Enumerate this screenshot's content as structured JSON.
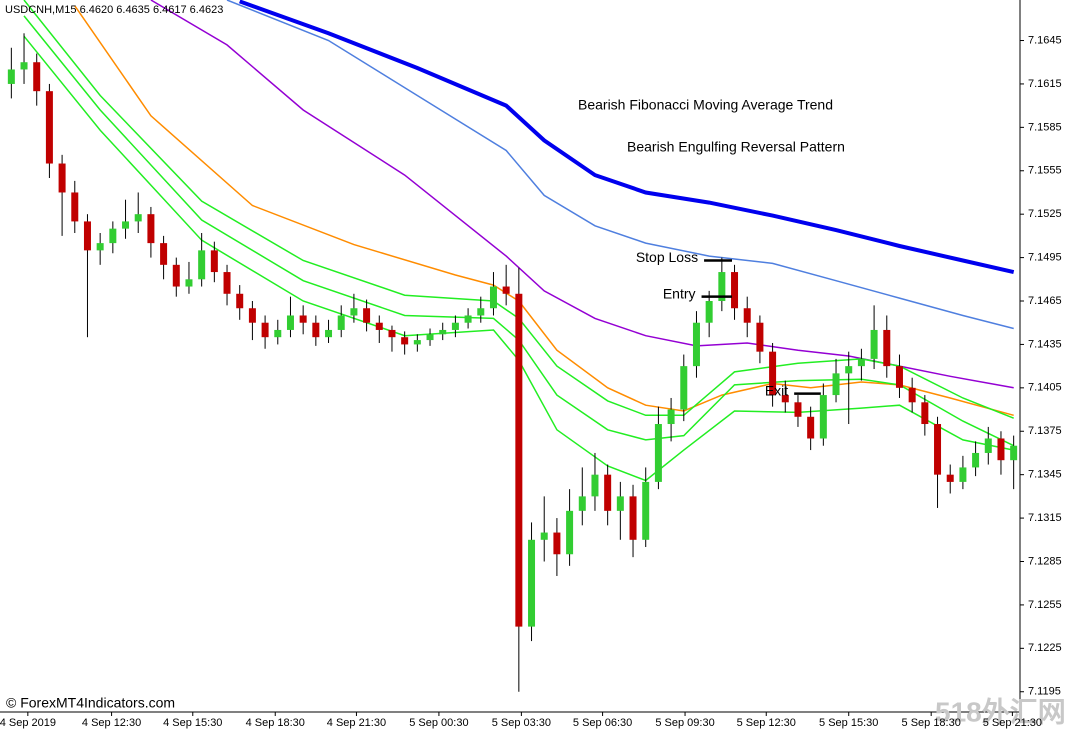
{
  "chart_data": {
    "type": "candlestick",
    "symbol_info": "USDCNH,M15  6.4620 6.4635 6.4617 6.4623",
    "annotations": [
      "Bearish Fibonacci Moving Average Trend",
      "Bearish Engulfing Reversal Pattern"
    ],
    "watermarks": [
      "© ForexMT4Indicators.com",
      "518外汇网"
    ],
    "up_color": "#32cd32",
    "down_color": "#c00000",
    "wick_color": "#000000",
    "ylim": [
      7.1181,
      7.1673
    ],
    "yticks": [
      7.1645,
      7.1615,
      7.1585,
      7.1555,
      7.1525,
      7.1495,
      7.1465,
      7.1435,
      7.1405,
      7.1375,
      7.1345,
      7.1315,
      7.1285,
      7.1255,
      7.1225,
      7.1195
    ],
    "xlim": [
      0,
      80
    ],
    "xticks": [
      {
        "value": 1.3,
        "label": "4 Sep 2019"
      },
      {
        "value": 7.9,
        "label": "4 Sep 12:30"
      },
      {
        "value": 14.3,
        "label": "4 Sep 15:30"
      },
      {
        "value": 20.8,
        "label": "4 Sep 18:30"
      },
      {
        "value": 27.2,
        "label": "4 Sep 21:30"
      },
      {
        "value": 33.7,
        "label": "5 Sep 00:30"
      },
      {
        "value": 40.2,
        "label": "5 Sep 03:30"
      },
      {
        "value": 46.6,
        "label": "5 Sep 06:30"
      },
      {
        "value": 53.1,
        "label": "5 Sep 09:30"
      },
      {
        "value": 59.5,
        "label": "5 Sep 12:30"
      },
      {
        "value": 66.0,
        "label": "5 Sep 15:30"
      },
      {
        "value": 72.5,
        "label": "5 Sep 18:30"
      },
      {
        "value": 78.9,
        "label": "5 Sep 21:30"
      }
    ],
    "candles": [
      [
        7.1615,
        7.164,
        7.1605,
        7.1625
      ],
      [
        7.1625,
        7.165,
        7.1615,
        7.163
      ],
      [
        7.163,
        7.1636,
        7.16,
        7.161
      ],
      [
        7.161,
        7.1615,
        7.155,
        7.156
      ],
      [
        7.156,
        7.1566,
        7.151,
        7.154
      ],
      [
        7.154,
        7.1548,
        7.1512,
        7.152
      ],
      [
        7.152,
        7.1525,
        7.144,
        7.15
      ],
      [
        7.15,
        7.1512,
        7.149,
        7.1505
      ],
      [
        7.1505,
        7.152,
        7.1498,
        7.1515
      ],
      [
        7.1515,
        7.1535,
        7.1508,
        7.152
      ],
      [
        7.152,
        7.154,
        7.1512,
        7.1525
      ],
      [
        7.1525,
        7.153,
        7.1495,
        7.1505
      ],
      [
        7.1505,
        7.151,
        7.148,
        7.149
      ],
      [
        7.149,
        7.1495,
        7.1468,
        7.1475
      ],
      [
        7.1475,
        7.1492,
        7.147,
        7.148
      ],
      [
        7.148,
        7.1512,
        7.1475,
        7.15
      ],
      [
        7.15,
        7.1506,
        7.1478,
        7.1485
      ],
      [
        7.1485,
        7.149,
        7.1462,
        7.147
      ],
      [
        7.147,
        7.1476,
        7.1452,
        7.146
      ],
      [
        7.146,
        7.1465,
        7.1438,
        7.145
      ],
      [
        7.145,
        7.1455,
        7.1432,
        7.144
      ],
      [
        7.144,
        7.1452,
        7.1435,
        7.1445
      ],
      [
        7.1445,
        7.1468,
        7.144,
        7.1455
      ],
      [
        7.1455,
        7.1462,
        7.1442,
        7.145
      ],
      [
        7.145,
        7.1455,
        7.1434,
        7.144
      ],
      [
        7.144,
        7.1452,
        7.1436,
        7.1445
      ],
      [
        7.1445,
        7.1462,
        7.144,
        7.1455
      ],
      [
        7.1455,
        7.147,
        7.145,
        7.146
      ],
      [
        7.146,
        7.1466,
        7.1444,
        7.145
      ],
      [
        7.145,
        7.1455,
        7.1436,
        7.1445
      ],
      [
        7.1445,
        7.1448,
        7.143,
        7.144
      ],
      [
        7.144,
        7.1444,
        7.1428,
        7.1435
      ],
      [
        7.1435,
        7.1442,
        7.143,
        7.1438
      ],
      [
        7.1438,
        7.1446,
        7.1434,
        7.1442
      ],
      [
        7.1442,
        7.145,
        7.1438,
        7.1445
      ],
      [
        7.1445,
        7.1455,
        7.144,
        7.145
      ],
      [
        7.145,
        7.146,
        7.1446,
        7.1455
      ],
      [
        7.1455,
        7.1468,
        7.145,
        7.146
      ],
      [
        7.146,
        7.1485,
        7.1455,
        7.1475
      ],
      [
        7.1475,
        7.149,
        7.1462,
        7.147
      ],
      [
        7.147,
        7.1488,
        7.1195,
        7.124
      ],
      [
        7.124,
        7.1312,
        7.123,
        7.13
      ],
      [
        7.13,
        7.133,
        7.1285,
        7.1305
      ],
      [
        7.1305,
        7.1315,
        7.1275,
        7.129
      ],
      [
        7.129,
        7.1335,
        7.1282,
        7.132
      ],
      [
        7.132,
        7.135,
        7.131,
        7.133
      ],
      [
        7.133,
        7.136,
        7.132,
        7.1345
      ],
      [
        7.1345,
        7.1352,
        7.131,
        7.132
      ],
      [
        7.132,
        7.134,
        7.13,
        7.133
      ],
      [
        7.133,
        7.1338,
        7.1288,
        7.13
      ],
      [
        7.13,
        7.135,
        7.1295,
        7.134
      ],
      [
        7.134,
        7.1392,
        7.1335,
        7.138
      ],
      [
        7.138,
        7.1398,
        7.1368,
        7.139
      ],
      [
        7.139,
        7.1428,
        7.1382,
        7.142
      ],
      [
        7.142,
        7.1458,
        7.1412,
        7.145
      ],
      [
        7.145,
        7.1472,
        7.144,
        7.1465
      ],
      [
        7.1465,
        7.1495,
        7.1458,
        7.1485
      ],
      [
        7.1485,
        7.149,
        7.1452,
        7.146
      ],
      [
        7.146,
        7.1468,
        7.144,
        7.145
      ],
      [
        7.145,
        7.1455,
        7.1422,
        7.143
      ],
      [
        7.143,
        7.1436,
        7.1392,
        7.14
      ],
      [
        7.14,
        7.141,
        7.1388,
        7.1395
      ],
      [
        7.1395,
        7.14,
        7.1378,
        7.1385
      ],
      [
        7.1385,
        7.1392,
        7.1362,
        7.137
      ],
      [
        7.137,
        7.1408,
        7.1365,
        7.14
      ],
      [
        7.14,
        7.1425,
        7.1395,
        7.1415
      ],
      [
        7.1415,
        7.143,
        7.138,
        7.142
      ],
      [
        7.142,
        7.1432,
        7.141,
        7.1425
      ],
      [
        7.1425,
        7.1462,
        7.1418,
        7.1445
      ],
      [
        7.1445,
        7.1455,
        7.1412,
        7.142
      ],
      [
        7.142,
        7.1428,
        7.1398,
        7.1405
      ],
      [
        7.1405,
        7.1412,
        7.1388,
        7.1395
      ],
      [
        7.1395,
        7.14,
        7.1372,
        7.138
      ],
      [
        7.138,
        7.1385,
        7.1322,
        7.1345
      ],
      [
        7.1345,
        7.1352,
        7.1332,
        7.134
      ],
      [
        7.134,
        7.1358,
        7.1335,
        7.135
      ],
      [
        7.135,
        7.1368,
        7.1344,
        7.136
      ],
      [
        7.136,
        7.1378,
        7.1352,
        7.137
      ],
      [
        7.137,
        7.1375,
        7.1345,
        7.1355
      ],
      [
        7.1355,
        7.1372,
        7.1335,
        7.1365
      ]
    ],
    "series": [
      {
        "color": "#0000ee",
        "line_width": 4,
        "x": [
          18,
          25,
          32,
          39,
          42,
          46,
          50,
          55,
          60,
          65,
          70,
          75,
          79
        ],
        "values": [
          7.1672,
          7.165,
          7.1626,
          7.16,
          7.1576,
          7.1552,
          7.154,
          7.1533,
          7.1524,
          7.1514,
          7.1503,
          7.1493,
          7.1485
        ]
      },
      {
        "color": "#4f7fdf",
        "line_width": 1.5,
        "x": [
          17,
          25,
          32,
          39,
          42,
          46,
          50,
          55,
          60,
          65,
          70,
          75,
          79
        ],
        "values": [
          7.1673,
          7.1645,
          7.1607,
          7.1569,
          7.1538,
          7.1517,
          7.1505,
          7.1496,
          7.1491,
          7.1479,
          7.1467,
          7.1455,
          7.1446
        ]
      },
      {
        "color": "#9400d3",
        "line_width": 1.5,
        "x": [
          11,
          17,
          23,
          31,
          39,
          42,
          46,
          50,
          54,
          58,
          62,
          66,
          70,
          74,
          79
        ],
        "values": [
          7.1673,
          7.1642,
          7.1597,
          7.1552,
          7.1496,
          7.1472,
          7.1453,
          7.1441,
          7.1434,
          7.1436,
          7.1431,
          7.1427,
          7.142,
          7.1413,
          7.1405
        ]
      },
      {
        "color": "#ff8c00",
        "line_width": 1.5,
        "x": [
          5,
          11,
          19,
          27,
          35,
          38,
          40,
          43,
          47,
          50,
          53,
          56,
          60,
          63,
          67,
          70,
          74,
          79
        ],
        "values": [
          7.1669,
          7.1593,
          7.1531,
          7.1504,
          7.1483,
          7.1476,
          7.1465,
          7.1431,
          7.1405,
          7.1393,
          7.1389,
          7.14,
          7.1408,
          7.1405,
          7.1409,
          7.1407,
          7.1398,
          7.1386
        ]
      },
      {
        "color": "#22ee22",
        "line_width": 1.5,
        "x": [
          1,
          7,
          15,
          23,
          31,
          38,
          40,
          43,
          47,
          50,
          53,
          57,
          62,
          67,
          70,
          75,
          79
        ],
        "values": [
          7.1673,
          7.1607,
          7.1534,
          7.1493,
          7.1469,
          7.1465,
          7.1453,
          7.142,
          7.1396,
          7.1386,
          7.1386,
          7.1416,
          7.1422,
          7.1425,
          7.142,
          7.1398,
          7.1384
        ]
      },
      {
        "color": "#22ee22",
        "line_width": 1.5,
        "x": [
          1,
          7,
          15,
          23,
          31,
          38,
          40,
          43,
          47,
          50,
          53,
          57,
          62,
          67,
          70,
          75,
          79
        ],
        "values": [
          7.1662,
          7.1597,
          7.1521,
          7.1479,
          7.1455,
          7.1453,
          7.1438,
          7.14,
          7.1376,
          7.1369,
          7.1372,
          7.1407,
          7.141,
          7.1411,
          7.1407,
          7.1382,
          7.1365
        ]
      },
      {
        "color": "#22ee22",
        "line_width": 1.5,
        "x": [
          1,
          7,
          15,
          23,
          31,
          38,
          40,
          43,
          47,
          50,
          53,
          57,
          62,
          67,
          70,
          75,
          79
        ],
        "values": [
          7.1648,
          7.1583,
          7.1507,
          7.1465,
          7.1441,
          7.1445,
          7.1424,
          7.1376,
          7.1351,
          7.1341,
          7.1362,
          7.1389,
          7.1388,
          7.1391,
          7.1393,
          7.1369,
          7.1362
        ]
      }
    ],
    "levels": [
      {
        "label": "Stop Loss",
        "value": 7.1493,
        "x": [
          54.6,
          56.8
        ]
      },
      {
        "label": "Entry",
        "value": 7.1468,
        "x": [
          54.4,
          56.8
        ]
      },
      {
        "label": "Exit",
        "value": 7.1401,
        "x": [
          61.7,
          63.8
        ]
      }
    ]
  }
}
